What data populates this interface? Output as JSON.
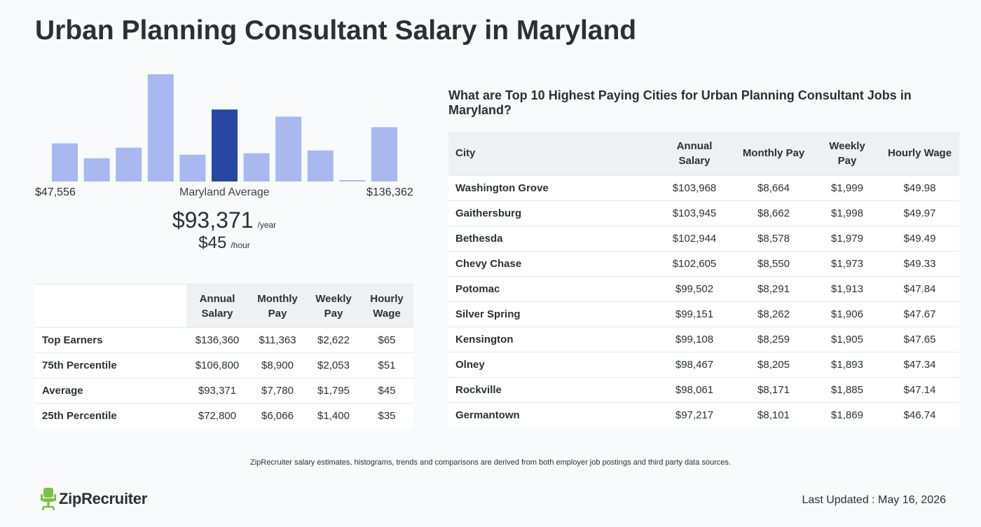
{
  "page_title": "Urban Planning Consultant Salary in Maryland",
  "chart_data": {
    "type": "bar",
    "categories": [
      "1",
      "2",
      "3",
      "4",
      "5",
      "6",
      "7",
      "8",
      "9",
      "10",
      "11"
    ],
    "values": [
      54,
      33,
      48,
      152,
      38,
      102,
      40,
      92,
      44,
      2,
      77
    ],
    "highlight_index": 5,
    "colors": {
      "bar": "#a9b8f0",
      "highlight": "#2647a4"
    },
    "range_min_label": "$47,556",
    "range_max_label": "$136,362",
    "range_center_label": "Maryland Average"
  },
  "average": {
    "year_value": "$93,371",
    "year_unit": "/year",
    "hour_value": "$45",
    "hour_unit": "/hour"
  },
  "percentile_table": {
    "headers": [
      "Annual Salary",
      "Monthly Pay",
      "Weekly Pay",
      "Hourly Wage"
    ],
    "rows": [
      {
        "label": "Top Earners",
        "annual": "$136,360",
        "monthly": "$11,363",
        "weekly": "$2,622",
        "hourly": "$65"
      },
      {
        "label": "75th Percentile",
        "annual": "$106,800",
        "monthly": "$8,900",
        "weekly": "$2,053",
        "hourly": "$51"
      },
      {
        "label": "Average",
        "annual": "$93,371",
        "monthly": "$7,780",
        "weekly": "$1,795",
        "hourly": "$45"
      },
      {
        "label": "25th Percentile",
        "annual": "$72,800",
        "monthly": "$6,066",
        "weekly": "$1,400",
        "hourly": "$35"
      }
    ]
  },
  "cities": {
    "title": "What are Top 10 Highest Paying Cities for Urban Planning Consultant Jobs in Maryland?",
    "headers": [
      "City",
      "Annual Salary",
      "Monthly Pay",
      "Weekly Pay",
      "Hourly Wage"
    ],
    "rows": [
      {
        "city": "Washington Grove",
        "annual": "$103,968",
        "monthly": "$8,664",
        "weekly": "$1,999",
        "hourly": "$49.98"
      },
      {
        "city": "Gaithersburg",
        "annual": "$103,945",
        "monthly": "$8,662",
        "weekly": "$1,998",
        "hourly": "$49.97"
      },
      {
        "city": "Bethesda",
        "annual": "$102,944",
        "monthly": "$8,578",
        "weekly": "$1,979",
        "hourly": "$49.49"
      },
      {
        "city": "Chevy Chase",
        "annual": "$102,605",
        "monthly": "$8,550",
        "weekly": "$1,973",
        "hourly": "$49.33"
      },
      {
        "city": "Potomac",
        "annual": "$99,502",
        "monthly": "$8,291",
        "weekly": "$1,913",
        "hourly": "$47.84"
      },
      {
        "city": "Silver Spring",
        "annual": "$99,151",
        "monthly": "$8,262",
        "weekly": "$1,906",
        "hourly": "$47.67"
      },
      {
        "city": "Kensington",
        "annual": "$99,108",
        "monthly": "$8,259",
        "weekly": "$1,905",
        "hourly": "$47.65"
      },
      {
        "city": "Olney",
        "annual": "$98,467",
        "monthly": "$8,205",
        "weekly": "$1,893",
        "hourly": "$47.34"
      },
      {
        "city": "Rockville",
        "annual": "$98,061",
        "monthly": "$8,171",
        "weekly": "$1,885",
        "hourly": "$47.14"
      },
      {
        "city": "Germantown",
        "annual": "$97,217",
        "monthly": "$8,101",
        "weekly": "$1,869",
        "hourly": "$46.74"
      }
    ]
  },
  "footer": {
    "disclaimer": "ZipRecruiter salary estimates, histograms, trends and comparisons are derived from both employer job postings and third party data sources.",
    "logo_text": "ZipRecruiter",
    "logo_icon": "ziprecruiter-chair-icon",
    "logo_color": "#7ac143",
    "last_updated": "Last Updated : May 16, 2026"
  }
}
